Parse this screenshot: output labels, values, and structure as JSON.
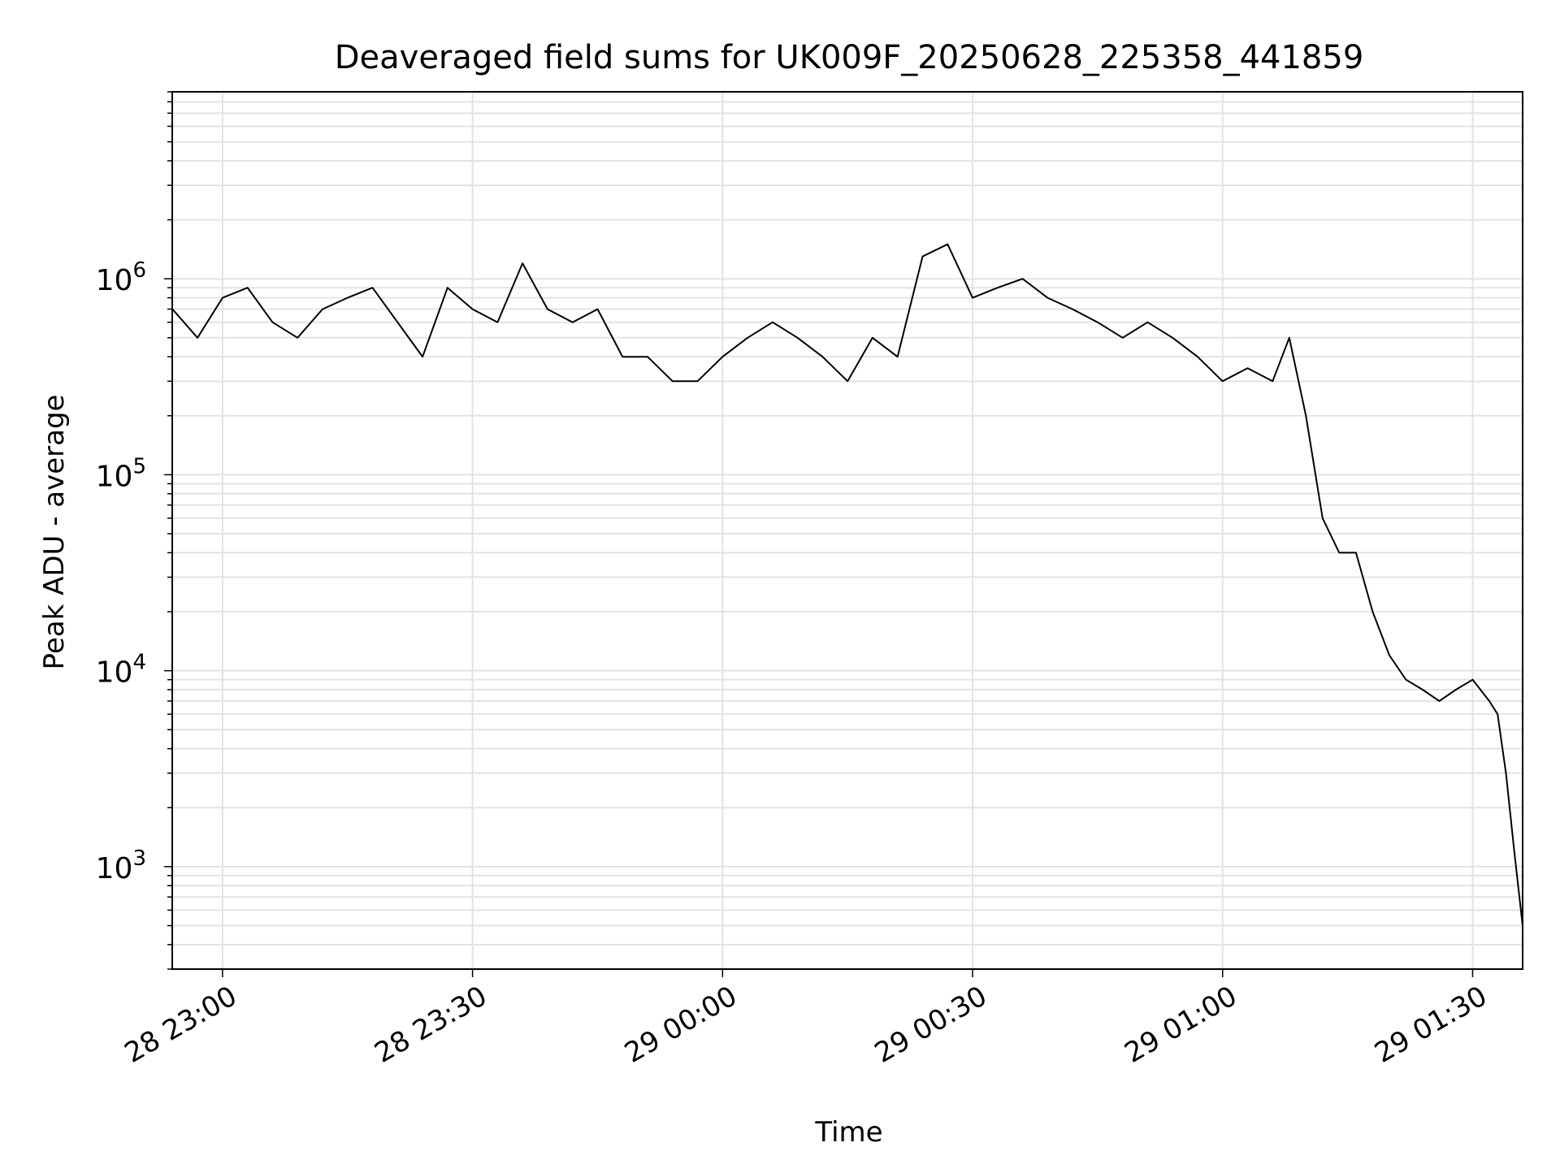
{
  "chart_data": {
    "type": "line",
    "title": "Deaveraged field sums for UK009F_20250628_225358_441859",
    "xlabel": "Time",
    "ylabel": "Peak ADU - average",
    "yscale": "log",
    "grid": "on (major and minor)",
    "xlim": [
      "2025-06-28 22:53:58",
      "2025-06-29 01:36:00"
    ],
    "ylim": [
      300,
      9000000
    ],
    "x_ticks": [
      "28 23:00",
      "28 23:30",
      "29 00:00",
      "29 00:30",
      "29 01:00",
      "29 01:30"
    ],
    "y_ticks": [
      {
        "base": "10",
        "exp": "3",
        "value": 1000
      },
      {
        "base": "10",
        "exp": "4",
        "value": 10000
      },
      {
        "base": "10",
        "exp": "5",
        "value": 100000
      },
      {
        "base": "10",
        "exp": "6",
        "value": 1000000
      }
    ],
    "line_color": "#000000",
    "series": [
      {
        "x": [
          "2025-06-28 22:54",
          "2025-06-28 22:57",
          "2025-06-28 23:00",
          "2025-06-28 23:03",
          "2025-06-28 23:06",
          "2025-06-28 23:09",
          "2025-06-28 23:12",
          "2025-06-28 23:15",
          "2025-06-28 23:18",
          "2025-06-28 23:21",
          "2025-06-28 23:24",
          "2025-06-28 23:27",
          "2025-06-28 23:30",
          "2025-06-28 23:33",
          "2025-06-28 23:36",
          "2025-06-28 23:39",
          "2025-06-28 23:42",
          "2025-06-28 23:45",
          "2025-06-28 23:48",
          "2025-06-28 23:51",
          "2025-06-28 23:54",
          "2025-06-28 23:57",
          "2025-06-29 00:00",
          "2025-06-29 00:03",
          "2025-06-29 00:06",
          "2025-06-29 00:09",
          "2025-06-29 00:12",
          "2025-06-29 00:15",
          "2025-06-29 00:18",
          "2025-06-29 00:21",
          "2025-06-29 00:24",
          "2025-06-29 00:27",
          "2025-06-29 00:30",
          "2025-06-29 00:33",
          "2025-06-29 00:36",
          "2025-06-29 00:39",
          "2025-06-29 00:42",
          "2025-06-29 00:45",
          "2025-06-29 00:48",
          "2025-06-29 00:51",
          "2025-06-29 00:54",
          "2025-06-29 00:57",
          "2025-06-29 01:00",
          "2025-06-29 01:03",
          "2025-06-29 01:06",
          "2025-06-29 01:08",
          "2025-06-29 01:10",
          "2025-06-29 01:12",
          "2025-06-29 01:14",
          "2025-06-29 01:16",
          "2025-06-29 01:18",
          "2025-06-29 01:20",
          "2025-06-29 01:22",
          "2025-06-29 01:24",
          "2025-06-29 01:26",
          "2025-06-29 01:28",
          "2025-06-29 01:30",
          "2025-06-29 01:32",
          "2025-06-29 01:33",
          "2025-06-29 01:34",
          "2025-06-29 01:35",
          "2025-06-29 01:36"
        ],
        "y": [
          700000,
          500000,
          800000,
          900000,
          600000,
          500000,
          700000,
          800000,
          900000,
          600000,
          400000,
          900000,
          700000,
          600000,
          1200000,
          700000,
          600000,
          700000,
          400000,
          400000,
          300000,
          300000,
          400000,
          500000,
          600000,
          500000,
          400000,
          300000,
          500000,
          400000,
          1300000,
          1500000,
          800000,
          900000,
          1000000,
          800000,
          700000,
          600000,
          500000,
          600000,
          500000,
          400000,
          300000,
          350000,
          300000,
          500000,
          200000,
          60000,
          40000,
          40000,
          20000,
          12000,
          9000,
          8000,
          7000,
          8000,
          9000,
          7000,
          6000,
          3000,
          1200,
          500
        ]
      }
    ]
  }
}
